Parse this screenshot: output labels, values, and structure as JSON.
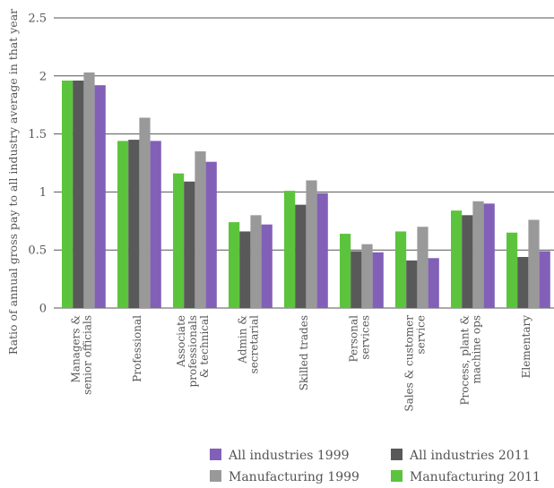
{
  "chart_data": {
    "type": "bar",
    "title": "",
    "xlabel": "",
    "ylabel": "Ratio of annual gross pay to all industry average in that year",
    "ylim": [
      0,
      2.5
    ],
    "yticks": [
      "0",
      "0.5",
      "1",
      "1.5",
      "2",
      "2.5"
    ],
    "grid": true,
    "legend_position": "bottom-right",
    "categories": [
      [
        "Managers &",
        "senior officials"
      ],
      [
        "Professional"
      ],
      [
        "Associate",
        "professionals",
        "& technical"
      ],
      [
        "Admin &",
        "secretarial"
      ],
      [
        "Skilled trades"
      ],
      [
        "Personal",
        "services"
      ],
      [
        "Sales & customer",
        "service"
      ],
      [
        "Process, plant &",
        "machine ops"
      ],
      [
        "Elementary"
      ]
    ],
    "series": [
      {
        "name": "Manufacturing 2011",
        "color": "#5cc43c",
        "values": [
          1.96,
          1.44,
          1.16,
          0.74,
          1.01,
          0.64,
          0.66,
          0.84,
          0.65
        ]
      },
      {
        "name": "All industries 2011",
        "color": "#595959",
        "values": [
          1.96,
          1.45,
          1.09,
          0.66,
          0.89,
          0.49,
          0.41,
          0.8,
          0.44
        ]
      },
      {
        "name": "Manufacturing 1999",
        "color": "#999999",
        "values": [
          2.03,
          1.64,
          1.35,
          0.8,
          1.1,
          0.55,
          0.7,
          0.92,
          0.76
        ]
      },
      {
        "name": "All industries 1999",
        "color": "#8260b8",
        "values": [
          1.92,
          1.44,
          1.26,
          0.72,
          0.99,
          0.48,
          0.43,
          0.9,
          0.49
        ]
      }
    ],
    "legend_order": [
      "All industries 1999",
      "All industries 2011",
      "Manufacturing 1999",
      "Manufacturing 2011"
    ]
  }
}
